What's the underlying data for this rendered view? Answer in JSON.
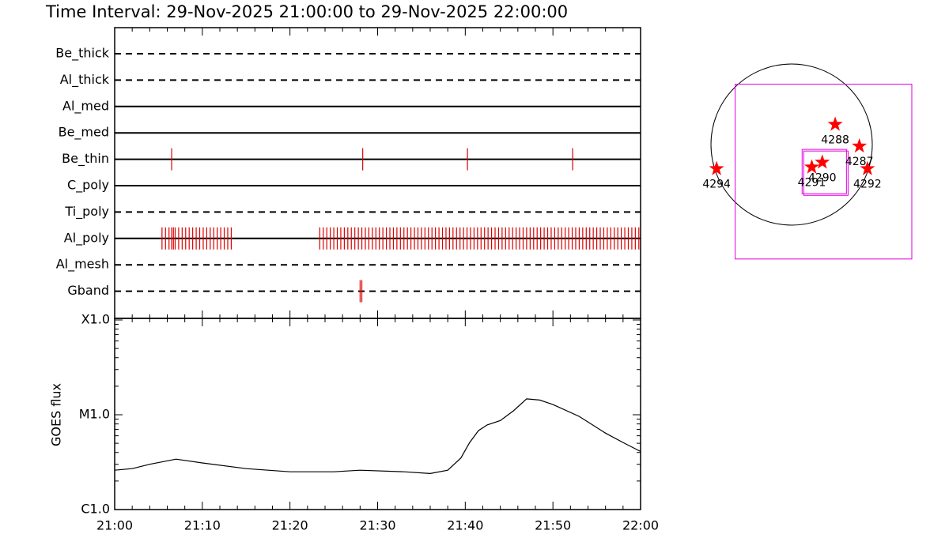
{
  "chart_data": [
    {
      "type": "timeline",
      "title": "Time Interval: 29-Nov-2025 21:00:00 to 29-Nov-2025 22:00:00",
      "categories": [
        "Be_thick",
        "Al_thick",
        "Al_med",
        "Be_med",
        "Be_thin",
        "C_poly",
        "Ti_poly",
        "Al_poly",
        "Al_mesh",
        "Gband"
      ],
      "line_styles": [
        "dashed",
        "dashed",
        "solid",
        "solid",
        "solid",
        "solid",
        "dashed",
        "solid",
        "dashed",
        "dashed"
      ],
      "events": [
        [],
        [],
        [],
        [],
        [
          6.5,
          28.3,
          40.25,
          52.25
        ],
        [],
        [],
        [
          5.4,
          5.8,
          6.2,
          6.5,
          6.7,
          6.9,
          7.3,
          7.7,
          8.1,
          8.5,
          8.9,
          9.3,
          9.7,
          10.1,
          10.5,
          10.9,
          11.3,
          11.7,
          12.1,
          12.5,
          12.9,
          13.3,
          23.4,
          23.8,
          24.2,
          24.6,
          25.0,
          25.4,
          25.8,
          26.2,
          26.6,
          27.0,
          27.4,
          27.8,
          28.2,
          28.6,
          29.0,
          29.4,
          29.8,
          30.2,
          30.6,
          31.0,
          31.4,
          31.8,
          32.2,
          32.6,
          33.0,
          33.4,
          33.8,
          34.2,
          34.6,
          35.0,
          35.4,
          35.8,
          36.2,
          36.6,
          37.0,
          37.4,
          37.8,
          38.2,
          38.6,
          39.0,
          39.4,
          39.8,
          40.2,
          40.6,
          41.0,
          41.4,
          41.8,
          42.2,
          42.6,
          43.0,
          43.4,
          43.8,
          44.2,
          44.6,
          45.0,
          45.4,
          45.8,
          46.2,
          46.6,
          47.0,
          47.4,
          47.8,
          48.2,
          48.6,
          49.0,
          49.4,
          49.8,
          50.2,
          50.6,
          51.0,
          51.4,
          51.8,
          52.2,
          52.6,
          53.0,
          53.4,
          53.8,
          54.2,
          54.6,
          55.0,
          55.4,
          55.8,
          56.2,
          56.6,
          57.0,
          57.4,
          57.8,
          58.2,
          58.6,
          59.0,
          59.4,
          59.8
        ],
        [],
        [
          28.0,
          28.2
        ]
      ],
      "color": "#dd0000",
      "xlim": [
        0,
        60
      ],
      "xticks": [
        0,
        10,
        20,
        30,
        40,
        50,
        60
      ],
      "xminorticks": [
        2,
        4,
        6,
        8,
        12,
        14,
        16,
        18,
        22,
        24,
        26,
        28,
        32,
        34,
        36,
        38,
        42,
        44,
        46,
        48,
        52,
        54,
        56,
        58
      ]
    },
    {
      "type": "line",
      "ylabel": "GOES flux",
      "x": [
        0,
        2,
        4,
        7,
        10,
        15,
        20,
        25,
        28,
        33,
        36,
        38,
        39.5,
        40.5,
        41.5,
        42.5,
        44,
        45.5,
        47,
        48.5,
        50,
        53,
        56,
        58,
        60
      ],
      "values": [
        2.6e-06,
        2.7e-06,
        3e-06,
        3.4e-06,
        3.1e-06,
        2.7e-06,
        2.5e-06,
        2.5e-06,
        2.6e-06,
        2.5e-06,
        2.4e-06,
        2.6e-06,
        3.5e-06,
        5.1e-06,
        6.8e-06,
        7.8e-06,
        8.7e-06,
        1.1e-05,
        1.47e-05,
        1.43e-05,
        1.28e-05,
        9.6e-06,
        6.4e-06,
        5.1e-06,
        4.1e-06
      ],
      "color": "#000000",
      "log_y": true,
      "ylim": [
        1e-06,
        0.0001
      ],
      "yticks": [
        {
          "value": 1e-06,
          "label": "C1.0"
        },
        {
          "value": 1e-05,
          "label": "M1.0"
        },
        {
          "value": 0.0001,
          "label": "X1.0"
        }
      ],
      "yminorticks": [
        2e-06,
        3e-06,
        4e-06,
        5e-06,
        6e-06,
        7e-06,
        8e-06,
        9e-06,
        2e-05,
        3e-05,
        4e-05,
        5e-05,
        6e-05,
        7e-05,
        8e-05,
        9e-05
      ],
      "xlim": [
        0,
        60
      ],
      "xticks": [
        {
          "value": 0,
          "label": "21:00"
        },
        {
          "value": 10,
          "label": "21:10"
        },
        {
          "value": 20,
          "label": "21:20"
        },
        {
          "value": 30,
          "label": "21:30"
        },
        {
          "value": 40,
          "label": "21:40"
        },
        {
          "value": 50,
          "label": "21:50"
        },
        {
          "value": 60,
          "label": "22:00"
        }
      ],
      "xminorticks": [
        2,
        4,
        6,
        8,
        12,
        14,
        16,
        18,
        22,
        24,
        26,
        28,
        32,
        34,
        36,
        38,
        42,
        44,
        46,
        48,
        52,
        54,
        56,
        58
      ]
    },
    {
      "type": "map",
      "limb_radius": 1,
      "labels": [
        "4288",
        "4287",
        "4290",
        "4291",
        "4292",
        "4294"
      ],
      "x": [
        0.54,
        0.84,
        0.38,
        0.25,
        0.94,
        -0.93
      ],
      "y": [
        0.25,
        -0.02,
        -0.22,
        -0.28,
        -0.3,
        -0.3
      ],
      "color": "#ff0000",
      "boxes": [
        [
          -0.7,
          0.75,
          1.49,
          -1.42
        ],
        [
          0.13,
          -0.06,
          0.68,
          -0.61
        ],
        [
          0.15,
          -0.08,
          0.7,
          -0.63
        ]
      ],
      "box_color": "#e000e0"
    }
  ]
}
